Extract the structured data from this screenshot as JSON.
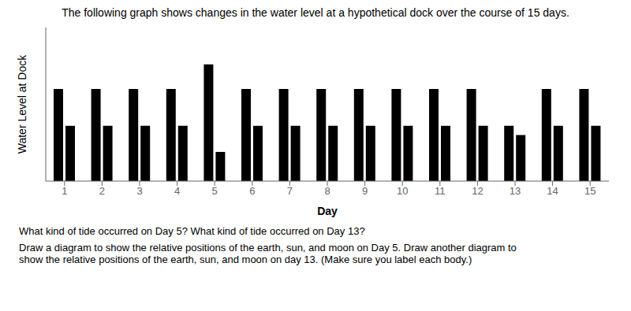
{
  "chart_data": {
    "type": "bar",
    "title": "The following graph shows changes in the water level at a hypothetical dock over the course of 15 days.",
    "x_label": "Day",
    "y_label": "Water Level at Dock",
    "annotations": [
      "What kind of tide occurred on Day 5? What kind of tide occurred on Day 13?",
      "Draw a diagram to show the relative positions of the earth, sun, and moon on Day 5. Draw another diagram to\nshow the relative positions of the earth, sun, and moon on day 13. (Make sure you label each body.)"
    ],
    "x": [
      1,
      2,
      3,
      4,
      5,
      6,
      7,
      8,
      9,
      10,
      11,
      12,
      13,
      14,
      15
    ],
    "xlim": [
      0.5,
      15.5
    ],
    "xticks": [
      1,
      2,
      3,
      4,
      5,
      6,
      7,
      8,
      9,
      10,
      11,
      12,
      13,
      14,
      15
    ],
    "series": [
      {
        "color": "#000000",
        "values": [
          0.6,
          0.6,
          0.6,
          0.6,
          0.76,
          0.6,
          0.6,
          0.6,
          0.6,
          0.6,
          0.6,
          0.6,
          0.36,
          0.6,
          0.6
        ]
      },
      {
        "color": "#000000",
        "values": [
          0.36,
          0.36,
          0.36,
          0.36,
          0.19,
          0.36,
          0.36,
          0.36,
          0.36,
          0.36,
          0.36,
          0.36,
          0.3,
          0.36,
          0.36
        ]
      }
    ],
    "ylim": [
      0,
      1.0
    ],
    "yticks": [],
    "grid": false,
    "tick_labels": "x"
  }
}
